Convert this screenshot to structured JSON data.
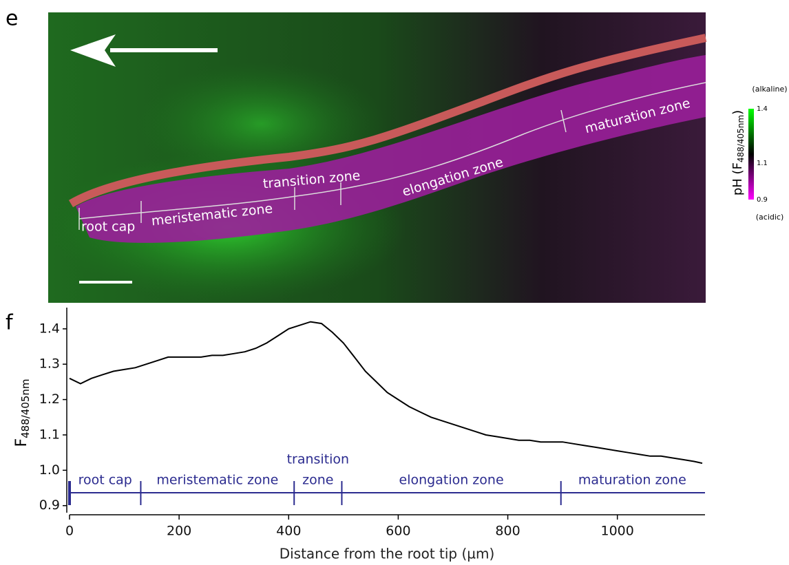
{
  "panel_e": {
    "letter": "e",
    "zones": [
      "root cap",
      "meristematic zone",
      "transition zone",
      "elongation zone",
      "maturation zone"
    ],
    "colorbar": {
      "title": "pH (F",
      "title_sub": "488/405nm",
      "title_end": ")",
      "top_label": "(alkaline)",
      "bottom_label": "(acidic)",
      "clim": [
        0.9,
        1.4
      ],
      "ticks": [
        1.4,
        1.1,
        0.9
      ]
    }
  },
  "chart_data": {
    "type": "line",
    "letter": "f",
    "x_label": "Distance from the root tip (µm)",
    "y_label": "F",
    "y_label_sub": "488/405nm",
    "xlim": [
      0,
      1160
    ],
    "ylim": [
      0.88,
      1.46
    ],
    "xticks": [
      0,
      200,
      400,
      600,
      800,
      1000
    ],
    "yticks": [
      {
        "value": 0.9,
        "label": "0.9"
      },
      {
        "value": 1,
        "label": "1.0"
      },
      1.1,
      1.2,
      1.3,
      1.4
    ],
    "zones": [
      {
        "label": [
          "root cap"
        ],
        "start": 0,
        "end": 130
      },
      {
        "label": [
          "meristematic zone"
        ],
        "start": 130,
        "end": 410
      },
      {
        "label": [
          "transition",
          "zone"
        ],
        "start": 410,
        "end": 497
      },
      {
        "label": [
          "elongation zone"
        ],
        "start": 497,
        "end": 897
      },
      {
        "label": [
          "maturation zone"
        ],
        "start": 897,
        "end": 1160
      }
    ],
    "series": [
      {
        "color": "#000000",
        "x": [
          0,
          20,
          40,
          60,
          80,
          100,
          120,
          140,
          160,
          180,
          200,
          220,
          240,
          260,
          280,
          300,
          320,
          340,
          360,
          380,
          400,
          420,
          440,
          460,
          480,
          500,
          520,
          540,
          560,
          580,
          600,
          620,
          640,
          660,
          680,
          700,
          720,
          740,
          760,
          780,
          800,
          820,
          840,
          860,
          880,
          900,
          920,
          940,
          960,
          980,
          1000,
          1020,
          1040,
          1060,
          1080,
          1100,
          1120,
          1140,
          1155
        ],
        "values": [
          1.26,
          1.245,
          1.26,
          1.27,
          1.28,
          1.285,
          1.29,
          1.3,
          1.31,
          1.32,
          1.32,
          1.32,
          1.32,
          1.325,
          1.325,
          1.33,
          1.335,
          1.345,
          1.36,
          1.38,
          1.4,
          1.41,
          1.42,
          1.415,
          1.39,
          1.36,
          1.32,
          1.28,
          1.25,
          1.22,
          1.2,
          1.18,
          1.165,
          1.15,
          1.14,
          1.13,
          1.12,
          1.11,
          1.1,
          1.095,
          1.09,
          1.085,
          1.085,
          1.08,
          1.08,
          1.08,
          1.075,
          1.07,
          1.065,
          1.06,
          1.055,
          1.05,
          1.045,
          1.04,
          1.04,
          1.035,
          1.03,
          1.025,
          1.02
        ]
      }
    ]
  }
}
